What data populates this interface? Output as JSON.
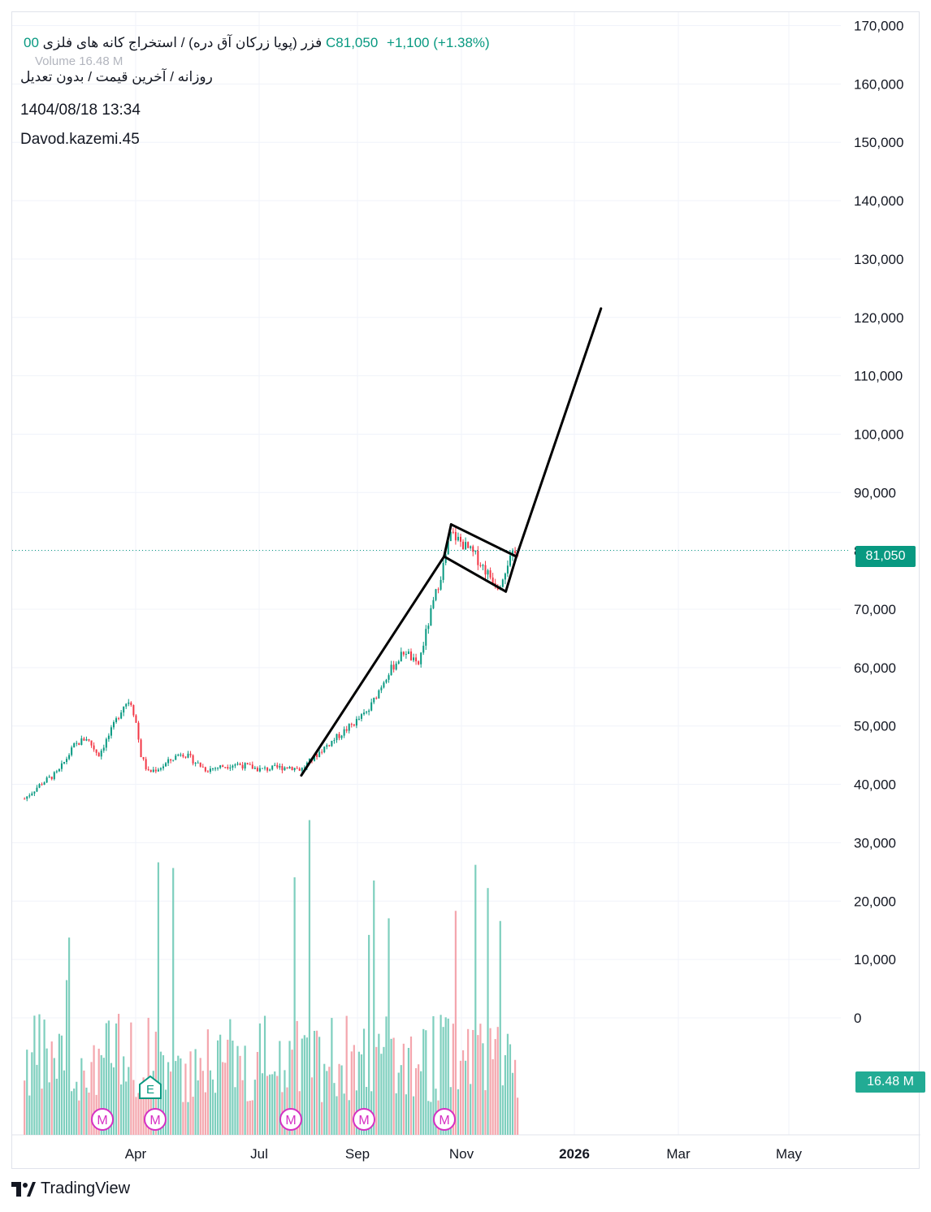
{
  "legend": {
    "symbol_line": "فزر (پویا زرکان آق دره) / استخراج کانه های فلزی",
    "ohlc_partial": "00 C81,050",
    "change": "+1,100 (+1.38%)",
    "volume_label": "Volume 16.48 M",
    "line2": "روزانه / آخرین قیمت / بدون تعدیل",
    "timestamp": "1404/08/18 13:34",
    "author": "Davod.kazemi.45"
  },
  "price_tag": "81,050",
  "volume_tag": "16.48 M",
  "footer": {
    "brand": "TradingView"
  },
  "colors": {
    "up": "#089981",
    "down": "#f23645",
    "vol_up": "#7ecfbe",
    "vol_down": "#f4a6ad",
    "accent": "#089981"
  },
  "chart_data": {
    "type": "candlestick",
    "y_ticks": [
      "170,000",
      "160,000",
      "150,000",
      "140,000",
      "130,000",
      "120,000",
      "110,000",
      "100,000",
      "90,000",
      "80,000",
      "70,000",
      "60,000",
      "50,000",
      "40,000",
      "30,000",
      "20,000",
      "10,000",
      "0"
    ],
    "price_axis_values": [
      170000,
      160000,
      150000,
      140000,
      130000,
      120000,
      110000,
      100000,
      90000,
      80000,
      70000,
      60000,
      50000,
      40000,
      30000,
      20000,
      10000,
      0
    ],
    "x_ticks": [
      "Apr",
      "Jul",
      "Sep",
      "Nov",
      "2026",
      "Mar",
      "May"
    ],
    "last_price": 81050,
    "price_path": [
      [
        "2025-02-01",
        38500
      ],
      [
        "2025-02-10",
        41000
      ],
      [
        "2025-02-20",
        43000
      ],
      [
        "2025-03-01",
        47500
      ],
      [
        "2025-03-08",
        49000
      ],
      [
        "2025-03-15",
        46000
      ],
      [
        "2025-03-22",
        50000
      ],
      [
        "2025-03-29",
        54500
      ],
      [
        "2025-04-02",
        55500
      ],
      [
        "2025-04-05",
        52000
      ],
      [
        "2025-04-08",
        46000
      ],
      [
        "2025-04-12",
        43000
      ],
      [
        "2025-04-20",
        44000
      ],
      [
        "2025-05-01",
        46500
      ],
      [
        "2025-05-15",
        43500
      ],
      [
        "2025-06-01",
        44500
      ],
      [
        "2025-06-15",
        43500
      ],
      [
        "2025-07-01",
        44000
      ],
      [
        "2025-07-08",
        43500
      ],
      [
        "2025-07-20",
        47000
      ],
      [
        "2025-08-01",
        50000
      ],
      [
        "2025-08-15",
        53500
      ],
      [
        "2025-08-25",
        59500
      ],
      [
        "2025-09-05",
        64000
      ],
      [
        "2025-09-12",
        61000
      ],
      [
        "2025-09-20",
        71000
      ],
      [
        "2025-09-27",
        79000
      ],
      [
        "2025-10-01",
        84000
      ],
      [
        "2025-10-08",
        82000
      ],
      [
        "2025-10-15",
        80000
      ],
      [
        "2025-10-22",
        77000
      ],
      [
        "2025-10-28",
        75000
      ],
      [
        "2025-11-02",
        79000
      ],
      [
        "2025-11-08",
        81050
      ]
    ],
    "drawings": {
      "pole": [
        [
          "2025-07-08",
          42500
        ],
        [
          "2025-09-27",
          80000
        ]
      ],
      "flag_top": [
        [
          "2025-10-01",
          85500
        ],
        [
          "2025-11-07",
          80000
        ]
      ],
      "flag_bottom": [
        [
          "2025-09-27",
          80000
        ],
        [
          "2025-11-01",
          74000
        ]
      ],
      "flag_left": [
        [
          "2025-09-27",
          80000
        ],
        [
          "2025-10-01",
          85500
        ]
      ],
      "flag_right": [
        [
          "2025-11-01",
          74000
        ],
        [
          "2025-11-07",
          80000
        ]
      ],
      "target": [
        [
          "2025-11-07",
          80000
        ],
        [
          "2025-12-25",
          122500
        ]
      ]
    },
    "event_markers": [
      "M",
      "E",
      "M",
      "M",
      "M",
      "M"
    ],
    "volume": "16.48 M"
  }
}
